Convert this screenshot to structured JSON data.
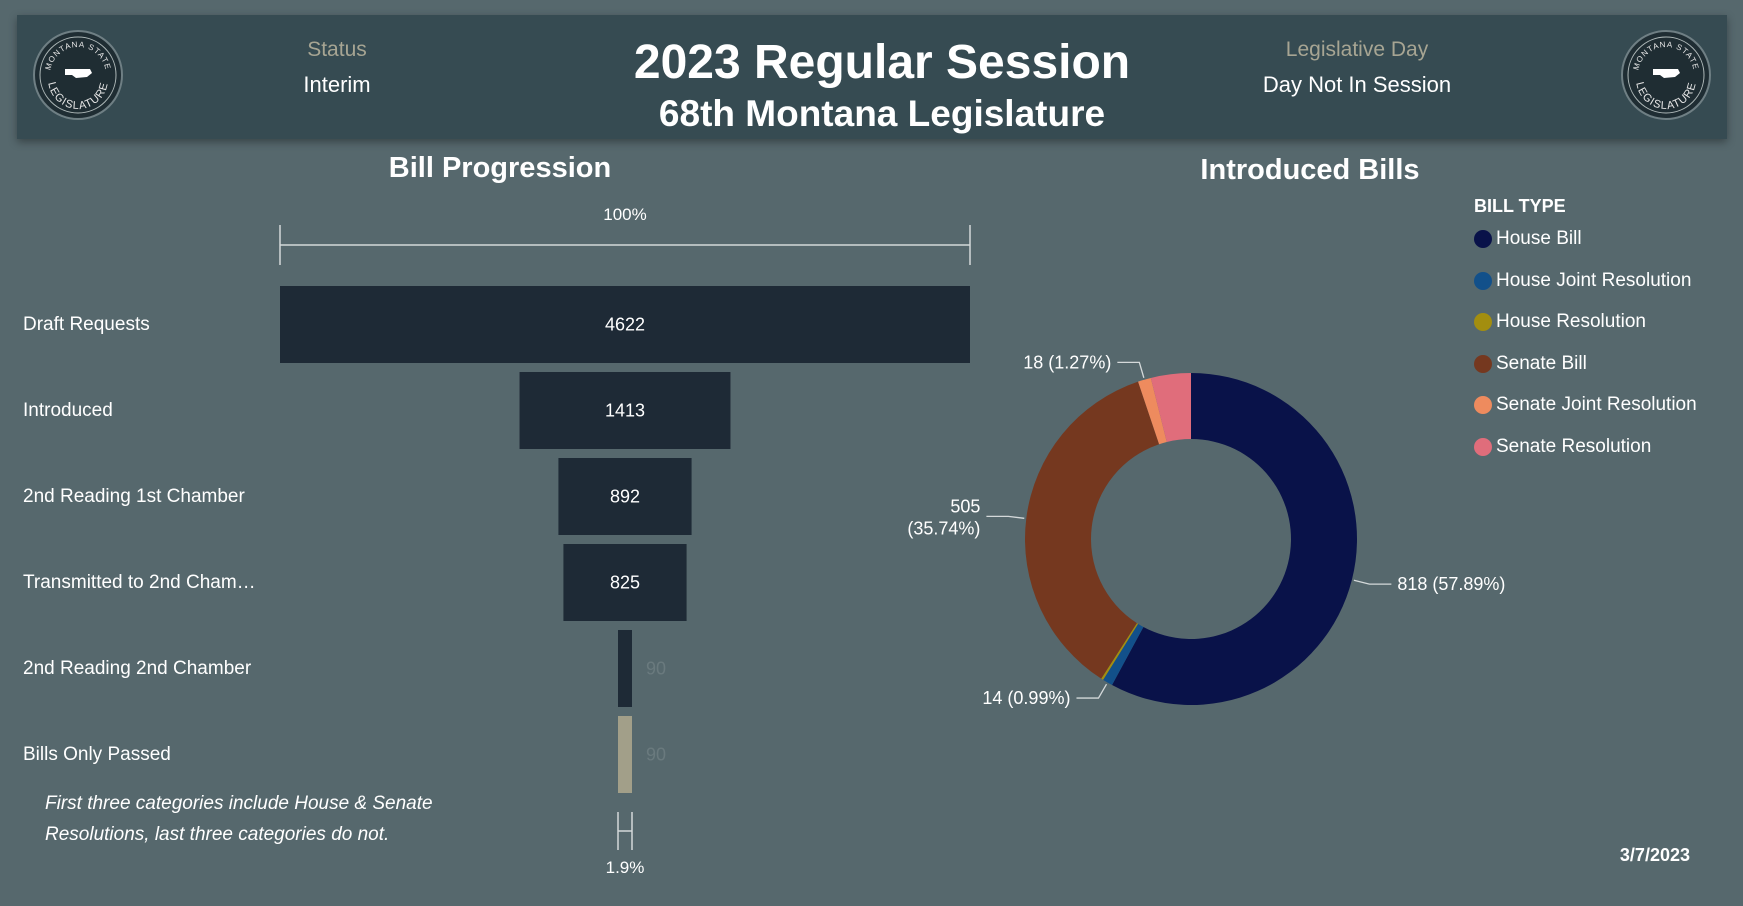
{
  "header": {
    "status_label": "Status",
    "status_value": "Interim",
    "title": "2023 Regular Session",
    "subtitle": "68th Montana Legislature",
    "day_label": "Legislative Day",
    "day_value": "Day Not In Session",
    "seal_text_top": "MONTANA STATE",
    "seal_text_bottom": "LEGISLATURE"
  },
  "funnel_title": "Bill Progression",
  "funnel_note": "First three categories include House & Senate Resolutions, last three categories do not.",
  "donut_title": "Introduced Bills",
  "legend_title": "BILL TYPE",
  "date": "3/7/2023",
  "colors": {
    "funnel_bar": "#1e2a36",
    "funnel_last": "#a29f89",
    "house_bill": "#091249",
    "house_joint_resolution": "#12508a",
    "house_resolution": "#a38e0f",
    "senate_bill": "#75381f",
    "senate_joint_resolution": "#ee8b5e",
    "senate_resolution": "#e06d7b"
  },
  "chart_data": [
    {
      "type": "funnel",
      "title": "Bill Progression",
      "categories": [
        "Draft Requests",
        "Introduced",
        "2nd Reading 1st Chamber",
        "Transmitted to 2nd Cham…",
        "2nd Reading 2nd Chamber",
        "Bills Only Passed"
      ],
      "values": [
        4622,
        1413,
        892,
        825,
        90,
        90
      ],
      "value_labels": [
        "4622",
        "1413",
        "892",
        "825",
        "90",
        "90"
      ],
      "top_percent_label": "100%",
      "bottom_percent_label": "1.9%"
    },
    {
      "type": "pie",
      "style": "donut",
      "title": "Introduced Bills",
      "legend_title": "BILL TYPE",
      "legend_position": "right",
      "categories": [
        "House Bill",
        "House Joint Resolution",
        "House Resolution",
        "Senate Bill",
        "Senate Joint Resolution",
        "Senate Resolution"
      ],
      "values": [
        818,
        14,
        3,
        505,
        18,
        55
      ],
      "data_labels": [
        "818 (57.89%)",
        "14 (0.99%)",
        "",
        "505 (35.74%)",
        "18 (1.27%)",
        ""
      ],
      "data_labels_line1": [
        "818 (57.89%)",
        "14 (0.99%)",
        "",
        "505",
        "18 (1.27%)",
        ""
      ],
      "data_labels_line2": [
        "",
        "",
        "",
        "(35.74%)",
        "",
        ""
      ]
    }
  ]
}
